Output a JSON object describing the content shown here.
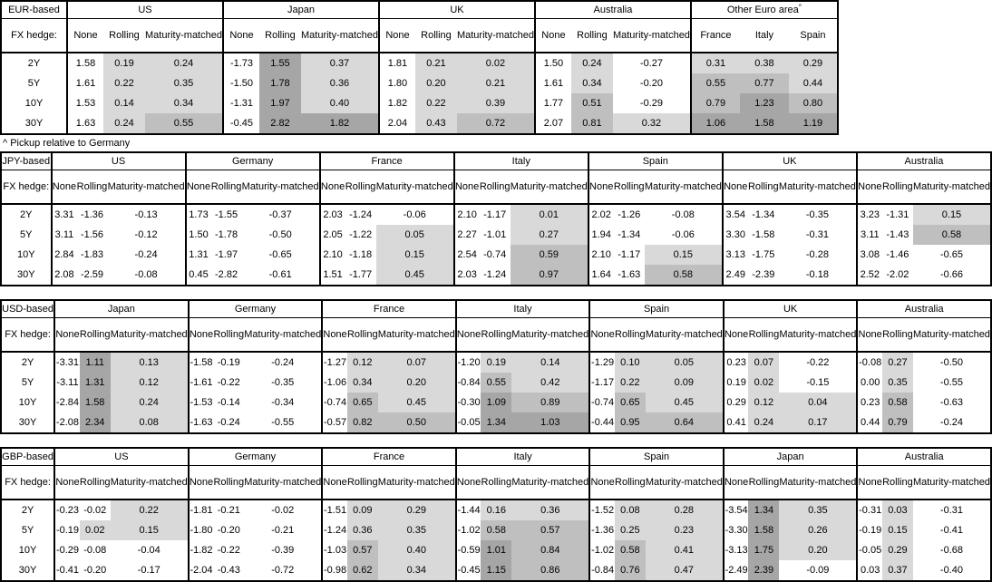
{
  "footnote": "^ Pickup relative to Germany",
  "hedge_row_label": "FX hedge:",
  "hedge_columns": [
    "None",
    "Rolling",
    "Maturity-matched"
  ],
  "tenors": [
    "2Y",
    "5Y",
    "10Y",
    "30Y"
  ],
  "shading": {
    "light": "#d9d9d9",
    "medium": "#bfbfbf",
    "dark": "#a6a6a6",
    "rule": "negative or None-column: white; 0 to 0.5: light; 0.5 to 1.0: medium; 1.0+: dark",
    "thresholds": [
      0,
      0.5,
      1.0
    ]
  },
  "tables": [
    {
      "base": "EUR-based",
      "blocks": [
        {
          "country": "US",
          "rows": [
            [
              "1.58",
              "0.19",
              "0.24"
            ],
            [
              "1.61",
              "0.22",
              "0.35"
            ],
            [
              "1.53",
              "0.14",
              "0.34"
            ],
            [
              "1.63",
              "0.24",
              "0.55"
            ]
          ]
        },
        {
          "country": "Japan",
          "rows": [
            [
              "-1.73",
              "1.55",
              "0.37"
            ],
            [
              "-1.50",
              "1.78",
              "0.36"
            ],
            [
              "-1.31",
              "1.97",
              "0.40"
            ],
            [
              "-0.45",
              "2.82",
              "1.82"
            ]
          ]
        },
        {
          "country": "UK",
          "rows": [
            [
              "1.81",
              "0.21",
              "0.02"
            ],
            [
              "1.80",
              "0.20",
              "0.21"
            ],
            [
              "1.82",
              "0.22",
              "0.39"
            ],
            [
              "2.04",
              "0.43",
              "0.72"
            ]
          ]
        },
        {
          "country": "Australia",
          "rows": [
            [
              "1.50",
              "0.24",
              "-0.27"
            ],
            [
              "1.61",
              "0.34",
              "-0.20"
            ],
            [
              "1.77",
              "0.51",
              "-0.29"
            ],
            [
              "2.07",
              "0.81",
              "0.32"
            ]
          ]
        },
        {
          "country": "Other Euro area",
          "sup": "^",
          "columns": [
            "France",
            "Italy",
            "Spain"
          ],
          "shade_all": true,
          "rows": [
            [
              "0.31",
              "0.38",
              "0.29"
            ],
            [
              "0.55",
              "0.77",
              "0.44"
            ],
            [
              "0.79",
              "1.23",
              "0.80"
            ],
            [
              "1.06",
              "1.58",
              "1.19"
            ]
          ]
        }
      ]
    },
    {
      "base": "JPY-based",
      "blocks": [
        {
          "country": "US",
          "rows": [
            [
              "3.31",
              "-1.36",
              "-0.13"
            ],
            [
              "3.11",
              "-1.56",
              "-0.12"
            ],
            [
              "2.84",
              "-1.83",
              "-0.24"
            ],
            [
              "2.08",
              "-2.59",
              "-0.08"
            ]
          ]
        },
        {
          "country": "Germany",
          "rows": [
            [
              "1.73",
              "-1.55",
              "-0.37"
            ],
            [
              "1.50",
              "-1.78",
              "-0.50"
            ],
            [
              "1.31",
              "-1.97",
              "-0.65"
            ],
            [
              "0.45",
              "-2.82",
              "-0.61"
            ]
          ]
        },
        {
          "country": "France",
          "rows": [
            [
              "2.03",
              "-1.24",
              "-0.06"
            ],
            [
              "2.05",
              "-1.22",
              "0.05"
            ],
            [
              "2.10",
              "-1.18",
              "0.15"
            ],
            [
              "1.51",
              "-1.77",
              "0.45"
            ]
          ]
        },
        {
          "country": "Italy",
          "rows": [
            [
              "2.10",
              "-1.17",
              "0.01"
            ],
            [
              "2.27",
              "-1.01",
              "0.27"
            ],
            [
              "2.54",
              "-0.74",
              "0.59"
            ],
            [
              "2.03",
              "-1.24",
              "0.97"
            ]
          ]
        },
        {
          "country": "Spain",
          "rows": [
            [
              "2.02",
              "-1.26",
              "-0.08"
            ],
            [
              "1.94",
              "-1.34",
              "-0.06"
            ],
            [
              "2.10",
              "-1.17",
              "0.15"
            ],
            [
              "1.64",
              "-1.63",
              "0.58"
            ]
          ]
        },
        {
          "country": "UK",
          "rows": [
            [
              "3.54",
              "-1.34",
              "-0.35"
            ],
            [
              "3.30",
              "-1.58",
              "-0.31"
            ],
            [
              "3.13",
              "-1.75",
              "-0.28"
            ],
            [
              "2.49",
              "-2.39",
              "-0.18"
            ]
          ]
        },
        {
          "country": "Australia",
          "rows": [
            [
              "3.23",
              "-1.31",
              "0.15"
            ],
            [
              "3.11",
              "-1.43",
              "0.58"
            ],
            [
              "3.08",
              "-1.46",
              "-0.65"
            ],
            [
              "2.52",
              "-2.02",
              "-0.66"
            ]
          ]
        }
      ]
    },
    {
      "base": "USD-based",
      "blocks": [
        {
          "country": "Japan",
          "rows": [
            [
              "-3.31",
              "1.11",
              "0.13"
            ],
            [
              "-3.11",
              "1.31",
              "0.12"
            ],
            [
              "-2.84",
              "1.58",
              "0.24"
            ],
            [
              "-2.08",
              "2.34",
              "0.08"
            ]
          ]
        },
        {
          "country": "Germany",
          "rows": [
            [
              "-1.58",
              "-0.19",
              "-0.24"
            ],
            [
              "-1.61",
              "-0.22",
              "-0.35"
            ],
            [
              "-1.53",
              "-0.14",
              "-0.34"
            ],
            [
              "-1.63",
              "-0.24",
              "-0.55"
            ]
          ]
        },
        {
          "country": "France",
          "rows": [
            [
              "-1.27",
              "0.12",
              "0.07"
            ],
            [
              "-1.06",
              "0.34",
              "0.20"
            ],
            [
              "-0.74",
              "0.65",
              "0.45"
            ],
            [
              "-0.57",
              "0.82",
              "0.50"
            ]
          ]
        },
        {
          "country": "Italy",
          "rows": [
            [
              "-1.20",
              "0.19",
              "0.14"
            ],
            [
              "-0.84",
              "0.55",
              "0.42"
            ],
            [
              "-0.30",
              "1.09",
              "0.89"
            ],
            [
              "-0.05",
              "1.34",
              "1.03"
            ]
          ]
        },
        {
          "country": "Spain",
          "rows": [
            [
              "-1.29",
              "0.10",
              "0.05"
            ],
            [
              "-1.17",
              "0.22",
              "0.09"
            ],
            [
              "-0.74",
              "0.65",
              "0.45"
            ],
            [
              "-0.44",
              "0.95",
              "0.64"
            ]
          ]
        },
        {
          "country": "UK",
          "rows": [
            [
              "0.23",
              "0.07",
              "-0.22"
            ],
            [
              "0.19",
              "0.02",
              "-0.15"
            ],
            [
              "0.29",
              "0.12",
              "0.04"
            ],
            [
              "0.41",
              "0.24",
              "0.17"
            ]
          ]
        },
        {
          "country": "Australia",
          "rows": [
            [
              "-0.08",
              "0.27",
              "-0.50"
            ],
            [
              "0.00",
              "0.35",
              "-0.55"
            ],
            [
              "0.23",
              "0.58",
              "-0.63"
            ],
            [
              "0.44",
              "0.79",
              "-0.24"
            ]
          ]
        }
      ]
    },
    {
      "base": "GBP-based",
      "blocks": [
        {
          "country": "US",
          "rows": [
            [
              "-0.23",
              "-0.02",
              "0.22"
            ],
            [
              "-0.19",
              "0.02",
              "0.15"
            ],
            [
              "-0.29",
              "-0.08",
              "-0.04"
            ],
            [
              "-0.41",
              "-0.20",
              "-0.17"
            ]
          ]
        },
        {
          "country": "Germany",
          "rows": [
            [
              "-1.81",
              "-0.21",
              "-0.02"
            ],
            [
              "-1.80",
              "-0.20",
              "-0.21"
            ],
            [
              "-1.82",
              "-0.22",
              "-0.39"
            ],
            [
              "-2.04",
              "-0.43",
              "-0.72"
            ]
          ]
        },
        {
          "country": "France",
          "rows": [
            [
              "-1.51",
              "0.09",
              "0.29"
            ],
            [
              "-1.24",
              "0.36",
              "0.35"
            ],
            [
              "-1.03",
              "0.57",
              "0.40"
            ],
            [
              "-0.98",
              "0.62",
              "0.34"
            ]
          ]
        },
        {
          "country": "Italy",
          "rows": [
            [
              "-1.44",
              "0.16",
              "0.36"
            ],
            [
              "-1.02",
              "0.58",
              "0.57"
            ],
            [
              "-0.59",
              "1.01",
              "0.84"
            ],
            [
              "-0.45",
              "1.15",
              "0.86"
            ]
          ]
        },
        {
          "country": "Spain",
          "rows": [
            [
              "-1.52",
              "0.08",
              "0.28"
            ],
            [
              "-1.36",
              "0.25",
              "0.23"
            ],
            [
              "-1.02",
              "0.58",
              "0.41"
            ],
            [
              "-0.84",
              "0.76",
              "0.47"
            ]
          ]
        },
        {
          "country": "Japan",
          "rows": [
            [
              "-3.54",
              "1.34",
              "0.35"
            ],
            [
              "-3.30",
              "1.58",
              "0.26"
            ],
            [
              "-3.13",
              "1.75",
              "0.20"
            ],
            [
              "-2.49",
              "2.39",
              "-0.09"
            ]
          ]
        },
        {
          "country": "Australia",
          "rows": [
            [
              "-0.31",
              "0.03",
              "-0.31"
            ],
            [
              "-0.19",
              "0.15",
              "-0.41"
            ],
            [
              "-0.05",
              "0.29",
              "-0.68"
            ],
            [
              "0.03",
              "0.37",
              "-0.40"
            ]
          ]
        }
      ]
    }
  ]
}
